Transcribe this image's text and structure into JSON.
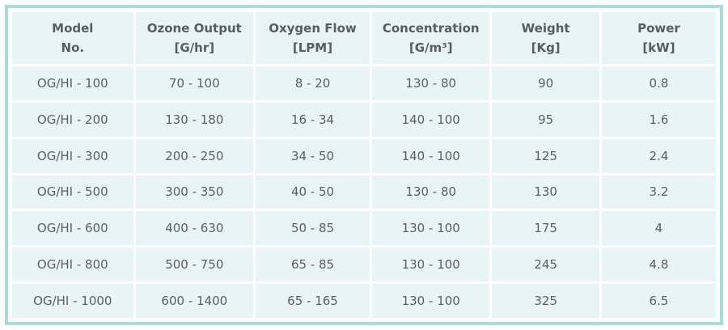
{
  "table": {
    "columns": [
      {
        "line1": "Model",
        "line2": "No."
      },
      {
        "line1": "Ozone Output",
        "line2": "[G/hr]"
      },
      {
        "line1": "Oxygen Flow",
        "line2": "[LPM]"
      },
      {
        "line1": "Concentration",
        "line2": "[G/m³]"
      },
      {
        "line1": "Weight",
        "line2": "[Kg]"
      },
      {
        "line1": "Power",
        "line2": "[kW]"
      }
    ],
    "rows": [
      [
        "OG/HI - 100",
        "70 - 100",
        "8 - 20",
        "130 - 80",
        "90",
        "0.8"
      ],
      [
        "OG/HI - 200",
        "130 - 180",
        "16 - 34",
        "140 - 100",
        "95",
        "1.6"
      ],
      [
        "OG/HI - 300",
        "200 - 250",
        "34 - 50",
        "140 - 100",
        "125",
        "2.4"
      ],
      [
        "OG/HI - 500",
        "300 - 350",
        "40 - 50",
        "130 - 80",
        "130",
        "3.2"
      ],
      [
        "OG/HI - 600",
        "400 - 630",
        "50 - 85",
        "130 - 100",
        "175",
        "4"
      ],
      [
        "OG/HI - 800",
        "500 - 750",
        "65 - 85",
        "130 - 100",
        "245",
        "4.8"
      ],
      [
        "OG/HI - 1000",
        "600 - 1400",
        "65 - 165",
        "130 - 100",
        "325",
        "6.5"
      ]
    ]
  },
  "colors": {
    "border": "#a9dcd8",
    "cell_background": "#e9f4f6",
    "header_text": "#555e63",
    "body_text": "#5a5f63"
  }
}
